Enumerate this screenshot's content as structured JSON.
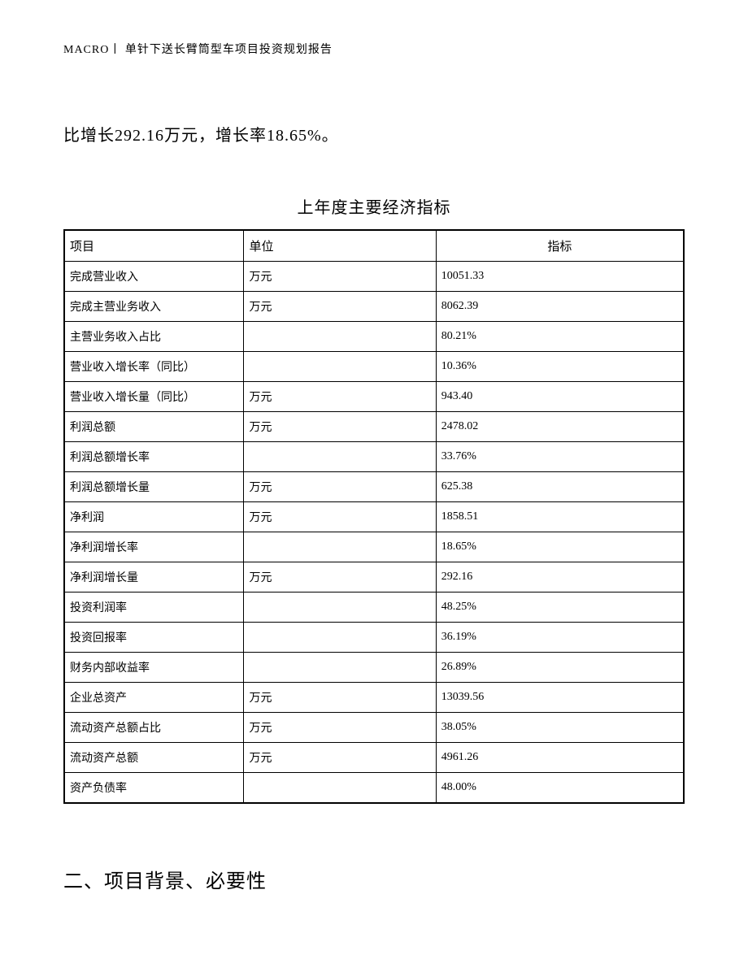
{
  "header": "MACRO丨 单针下送长臂筒型车项目投资规划报告",
  "body_text": "比增长292.16万元，增长率18.65%。",
  "table_title": "上年度主要经济指标",
  "columns": [
    "项目",
    "单位",
    "指标"
  ],
  "rows": [
    {
      "c1": "完成营业收入",
      "c2": "万元",
      "c3": "10051.33"
    },
    {
      "c1": "完成主营业务收入",
      "c2": "万元",
      "c3": "8062.39"
    },
    {
      "c1": "主营业务收入占比",
      "c2": "",
      "c3": "80.21%"
    },
    {
      "c1": "营业收入增长率（同比）",
      "c2": "",
      "c3": "10.36%"
    },
    {
      "c1": "营业收入增长量（同比）",
      "c2": "万元",
      "c3": "943.40"
    },
    {
      "c1": "利润总额",
      "c2": "万元",
      "c3": "2478.02"
    },
    {
      "c1": "利润总额增长率",
      "c2": "",
      "c3": "33.76%"
    },
    {
      "c1": "利润总额增长量",
      "c2": "万元",
      "c3": "625.38"
    },
    {
      "c1": "净利润",
      "c2": "万元",
      "c3": "1858.51"
    },
    {
      "c1": "净利润增长率",
      "c2": "",
      "c3": "18.65%"
    },
    {
      "c1": "净利润增长量",
      "c2": "万元",
      "c3": "292.16"
    },
    {
      "c1": "投资利润率",
      "c2": "",
      "c3": "48.25%"
    },
    {
      "c1": "投资回报率",
      "c2": "",
      "c3": "36.19%"
    },
    {
      "c1": "财务内部收益率",
      "c2": "",
      "c3": "26.89%"
    },
    {
      "c1": "企业总资产",
      "c2": "万元",
      "c3": "13039.56"
    },
    {
      "c1": "流动资产总额占比",
      "c2": "万元",
      "c3": "38.05%"
    },
    {
      "c1": "流动资产总额",
      "c2": "万元",
      "c3": "4961.26"
    },
    {
      "c1": "资产负债率",
      "c2": "",
      "c3": "48.00%"
    }
  ],
  "section_heading": "二、项目背景、必要性"
}
